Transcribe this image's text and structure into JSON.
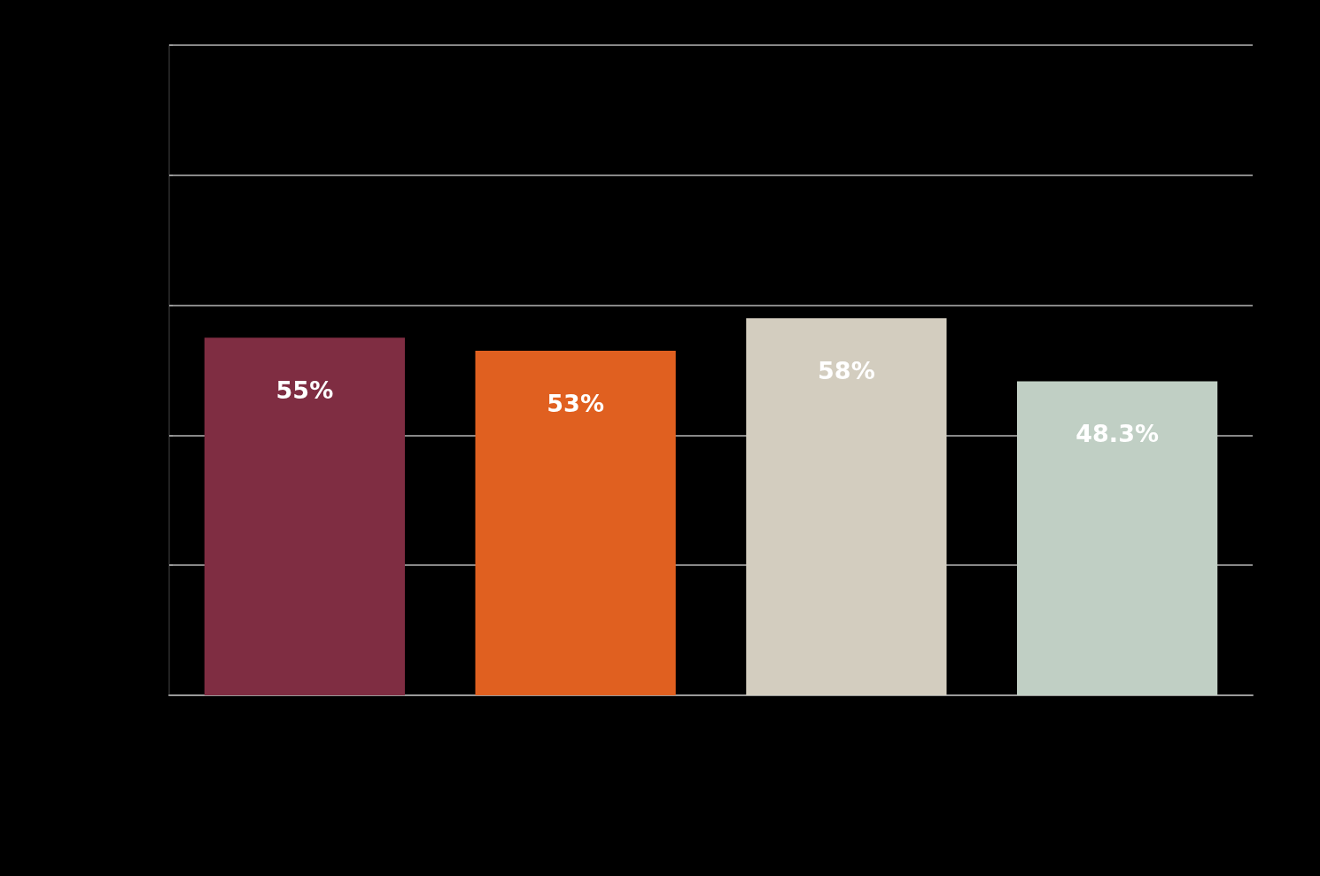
{
  "chart_data": {
    "type": "bar",
    "categories": [
      null,
      null,
      null,
      null
    ],
    "values": [
      55,
      53,
      58,
      48.3
    ],
    "colors": [
      "#7f2d42",
      "#e06020",
      "#d3cdbf",
      "#c0cfc4"
    ],
    "value_labels": [
      "55%",
      "53%",
      "58%",
      "48.3%"
    ],
    "ylim": [
      0,
      100
    ],
    "yticks": [
      {
        "value": 0,
        "label": null
      },
      {
        "value": 20,
        "label": null
      },
      {
        "value": 40,
        "label": null
      },
      {
        "value": 60,
        "label": null
      },
      {
        "value": 80,
        "label": null
      },
      {
        "value": 100,
        "label": null
      }
    ],
    "grid": "y"
  }
}
